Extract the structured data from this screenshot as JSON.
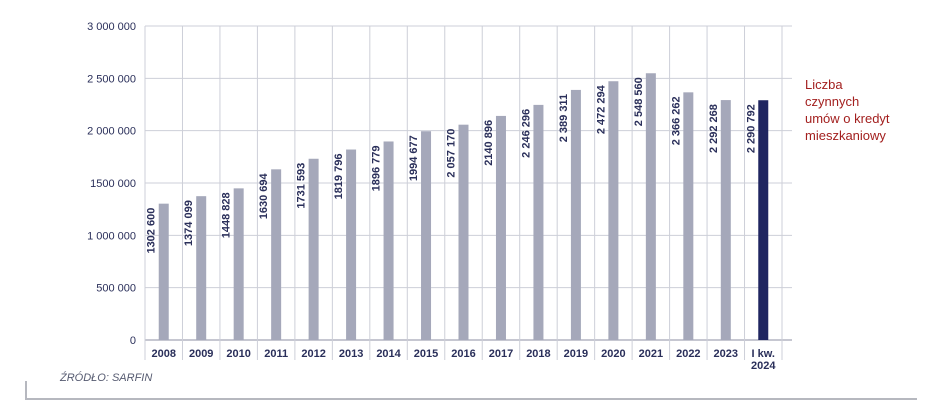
{
  "chart_data": {
    "type": "bar",
    "categories": [
      "2008",
      "2009",
      "2010",
      "2011",
      "2012",
      "2013",
      "2014",
      "2015",
      "2016",
      "2017",
      "2018",
      "2019",
      "2020",
      "2021",
      "2022",
      "2023",
      "I kw.\n2024"
    ],
    "values": [
      1302600,
      1374099,
      1448828,
      1630694,
      1731593,
      1819796,
      1896779,
      1994677,
      2057170,
      2140896,
      2246296,
      2389311,
      2472294,
      2548560,
      2366262,
      2292268,
      2290792
    ],
    "value_labels": [
      "1302 600",
      "1374 099",
      "1448 828",
      "1630 694",
      "1731 593",
      "1819 796",
      "1896 779",
      "1994 677",
      "2 057 170",
      "2140 896",
      "2 246 296",
      "2 389 311",
      "2 472 294",
      "2 548 560",
      "2 366 262",
      "2 292 268",
      "2 290 792"
    ],
    "yticks": [
      0,
      500000,
      1000000,
      1500000,
      2000000,
      2500000,
      3000000
    ],
    "ytick_labels": [
      "0",
      "500 000",
      "1 000 000",
      "1500 000",
      "2 000 000",
      "2 500 000",
      "3 000 000"
    ],
    "ylim": [
      0,
      3000000
    ],
    "grid": true,
    "legend_text": "Liczba\nczynnych\numów o kredyt\nmieszkaniowy",
    "legend_position": "right",
    "colors": {
      "bar": "#a5a8ba",
      "highlight_bar": "#1f2560",
      "highlight_label": "#a3201f",
      "text": "#2a2f5a",
      "grid": "#cdcfd8"
    }
  },
  "source": "ŹRÓDŁO: SARFIN"
}
